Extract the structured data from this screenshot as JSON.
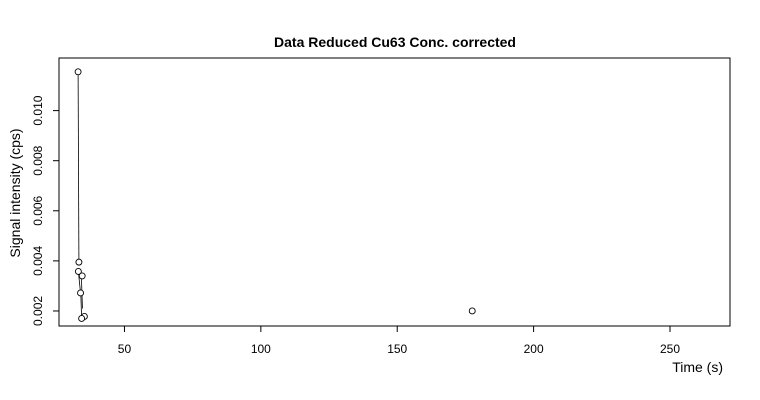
{
  "chart_data": {
    "type": "scatter",
    "title": "Data Reduced Cu63 Conc. corrected",
    "xlabel": "Time (s)",
    "ylabel": "Signal intensity (cps)",
    "xlim": [
      26,
      272
    ],
    "ylim": [
      0.0014,
      0.0121
    ],
    "x_ticks": [
      50,
      100,
      150,
      200,
      250
    ],
    "y_ticks": [
      0.002,
      0.004,
      0.006,
      0.008,
      0.01
    ],
    "x_tick_labels": [
      "50",
      "100",
      "150",
      "200",
      "250"
    ],
    "y_tick_labels": [
      "0.002",
      "0.004",
      "0.006",
      "0.008",
      "0.010"
    ],
    "grid": false,
    "line_segments": [
      [
        [
          33.0,
          0.01155
        ],
        [
          33.3,
          0.00395
        ]
      ],
      [
        [
          33.1,
          0.00358
        ],
        [
          33.9,
          0.00272
        ]
      ],
      [
        [
          34.0,
          0.00268
        ],
        [
          34.3,
          0.0017
        ]
      ],
      [
        [
          34.2,
          0.0034
        ],
        [
          34.6,
          0.0021
        ]
      ],
      [
        [
          34.5,
          0.00168
        ],
        [
          35.3,
          0.00178
        ]
      ]
    ],
    "points": [
      {
        "x": 33.0,
        "y": 0.01155
      },
      {
        "x": 33.3,
        "y": 0.00395
      },
      {
        "x": 33.1,
        "y": 0.00358
      },
      {
        "x": 34.5,
        "y": 0.0034
      },
      {
        "x": 33.9,
        "y": 0.00272
      },
      {
        "x": 35.3,
        "y": 0.00178
      },
      {
        "x": 34.3,
        "y": 0.0017
      },
      {
        "x": 177.5,
        "y": 0.002
      }
    ]
  }
}
